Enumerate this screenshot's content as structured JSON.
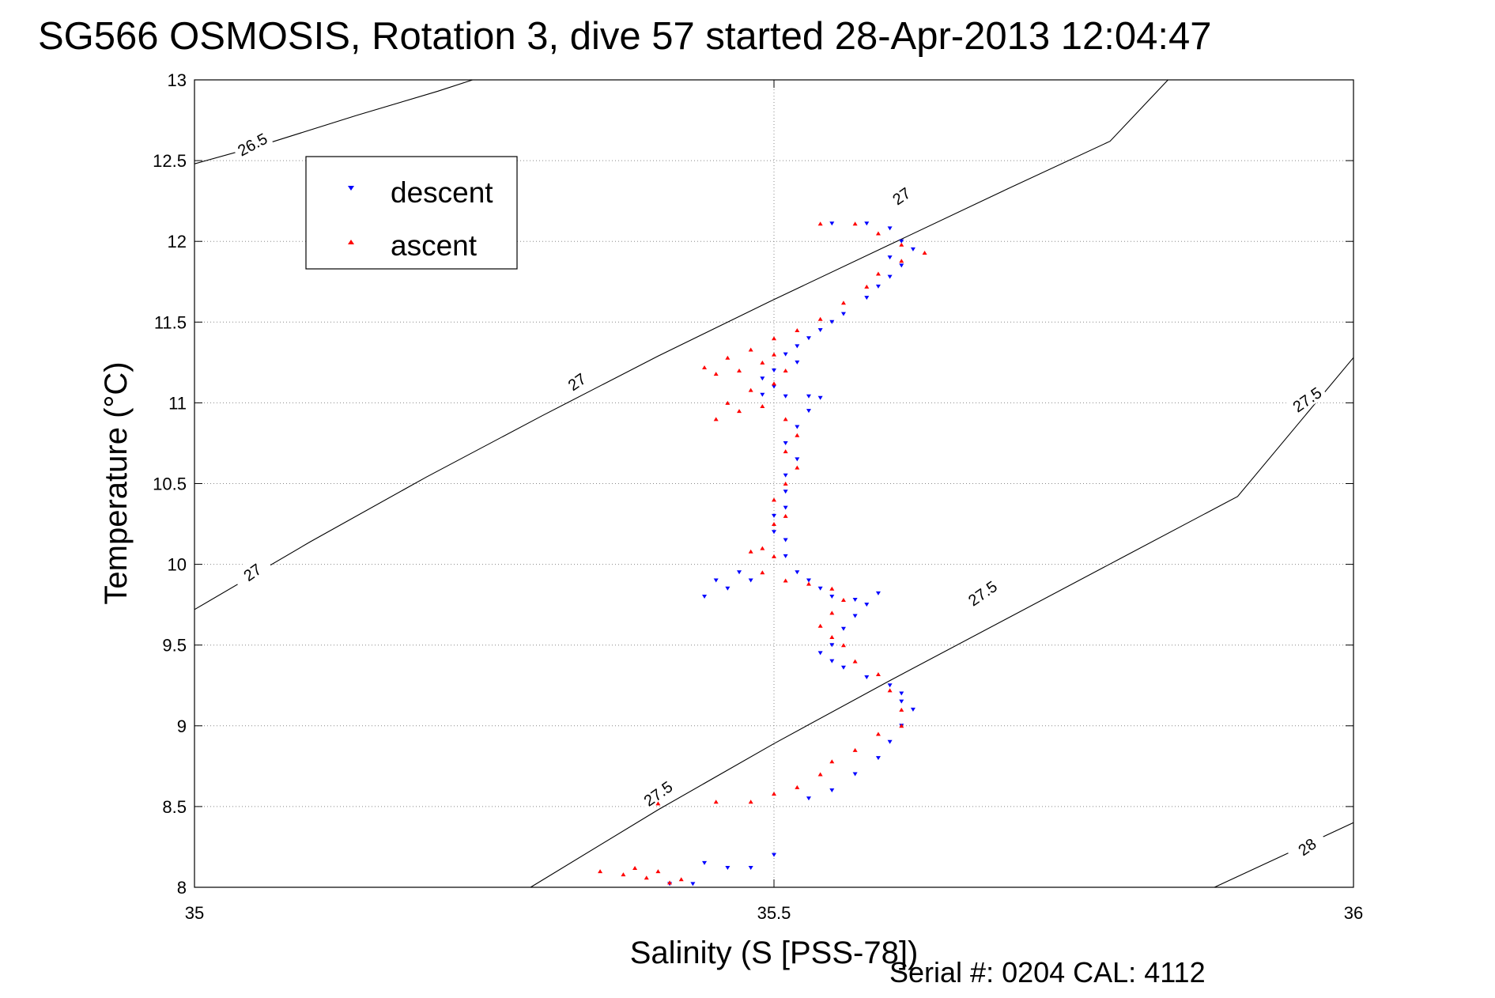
{
  "chart_data": {
    "type": "scatter",
    "title": "SG566 OSMOSIS, Rotation 3, dive 57 started 28-Apr-2013 12:04:47",
    "xlabel": "Salinity (S [PSS-78])",
    "ylabel": "Temperature (°C)",
    "footer": "Serial #: 0204  CAL: 4112",
    "xlim": [
      35,
      36
    ],
    "ylim": [
      8,
      13
    ],
    "xticks": [
      "35",
      "35.5",
      "36"
    ],
    "yticks": [
      "8",
      "8.5",
      "9",
      "9.5",
      "10",
      "10.5",
      "11",
      "11.5",
      "12",
      "12.5",
      "13"
    ],
    "xtick_values": [
      35,
      35.5,
      36
    ],
    "ytick_values": [
      8,
      8.5,
      9,
      9.5,
      10,
      10.5,
      11,
      11.5,
      12,
      12.5,
      13
    ],
    "grid": true,
    "legend_position": "top-left",
    "series": [
      {
        "name": "descent",
        "color": "#0000ff",
        "marker": "triangle-down",
        "points": [
          [
            35.55,
            12.11
          ],
          [
            35.58,
            12.11
          ],
          [
            35.6,
            12.08
          ],
          [
            35.61,
            12.0
          ],
          [
            35.62,
            11.95
          ],
          [
            35.6,
            11.9
          ],
          [
            35.61,
            11.85
          ],
          [
            35.6,
            11.78
          ],
          [
            35.59,
            11.72
          ],
          [
            35.58,
            11.65
          ],
          [
            35.56,
            11.55
          ],
          [
            35.55,
            11.5
          ],
          [
            35.54,
            11.45
          ],
          [
            35.53,
            11.4
          ],
          [
            35.52,
            11.35
          ],
          [
            35.51,
            11.3
          ],
          [
            35.52,
            11.25
          ],
          [
            35.5,
            11.2
          ],
          [
            35.49,
            11.15
          ],
          [
            35.5,
            11.1
          ],
          [
            35.49,
            11.05
          ],
          [
            35.51,
            11.04
          ],
          [
            35.53,
            11.04
          ],
          [
            35.54,
            11.03
          ],
          [
            35.53,
            10.95
          ],
          [
            35.52,
            10.85
          ],
          [
            35.51,
            10.75
          ],
          [
            35.52,
            10.65
          ],
          [
            35.51,
            10.55
          ],
          [
            35.51,
            10.45
          ],
          [
            35.51,
            10.35
          ],
          [
            35.5,
            10.3
          ],
          [
            35.5,
            10.2
          ],
          [
            35.51,
            10.15
          ],
          [
            35.51,
            10.05
          ],
          [
            35.52,
            9.95
          ],
          [
            35.53,
            9.9
          ],
          [
            35.54,
            9.85
          ],
          [
            35.55,
            9.8
          ],
          [
            35.57,
            9.78
          ],
          [
            35.59,
            9.82
          ],
          [
            35.58,
            9.75
          ],
          [
            35.57,
            9.68
          ],
          [
            35.56,
            9.6
          ],
          [
            35.55,
            9.5
          ],
          [
            35.54,
            9.45
          ],
          [
            35.55,
            9.4
          ],
          [
            35.56,
            9.36
          ],
          [
            35.58,
            9.3
          ],
          [
            35.6,
            9.25
          ],
          [
            35.61,
            9.2
          ],
          [
            35.61,
            9.15
          ],
          [
            35.62,
            9.1
          ],
          [
            35.61,
            9.0
          ],
          [
            35.6,
            8.9
          ],
          [
            35.59,
            8.8
          ],
          [
            35.57,
            8.7
          ],
          [
            35.55,
            8.6
          ],
          [
            35.53,
            8.55
          ],
          [
            35.48,
            9.9
          ],
          [
            35.46,
            9.85
          ],
          [
            35.44,
            9.8
          ],
          [
            35.45,
            9.9
          ],
          [
            35.47,
            9.95
          ],
          [
            35.5,
            8.2
          ],
          [
            35.48,
            8.12
          ],
          [
            35.46,
            8.12
          ],
          [
            35.44,
            8.15
          ],
          [
            35.43,
            8.02
          ],
          [
            35.41,
            8.02
          ]
        ]
      },
      {
        "name": "ascent",
        "color": "#ff0000",
        "marker": "triangle-up",
        "points": [
          [
            35.54,
            12.11
          ],
          [
            35.57,
            12.11
          ],
          [
            35.59,
            12.05
          ],
          [
            35.61,
            11.98
          ],
          [
            35.63,
            11.93
          ],
          [
            35.61,
            11.88
          ],
          [
            35.59,
            11.8
          ],
          [
            35.58,
            11.72
          ],
          [
            35.56,
            11.62
          ],
          [
            35.54,
            11.52
          ],
          [
            35.52,
            11.45
          ],
          [
            35.5,
            11.4
          ],
          [
            35.48,
            11.33
          ],
          [
            35.46,
            11.28
          ],
          [
            35.44,
            11.22
          ],
          [
            35.45,
            11.18
          ],
          [
            35.47,
            11.2
          ],
          [
            35.49,
            11.25
          ],
          [
            35.5,
            11.3
          ],
          [
            35.51,
            11.2
          ],
          [
            35.5,
            11.12
          ],
          [
            35.48,
            11.08
          ],
          [
            35.46,
            11.0
          ],
          [
            35.45,
            10.9
          ],
          [
            35.47,
            10.95
          ],
          [
            35.49,
            10.98
          ],
          [
            35.51,
            10.9
          ],
          [
            35.52,
            10.8
          ],
          [
            35.51,
            10.7
          ],
          [
            35.52,
            10.6
          ],
          [
            35.51,
            10.5
          ],
          [
            35.5,
            10.4
          ],
          [
            35.51,
            10.3
          ],
          [
            35.5,
            10.25
          ],
          [
            35.49,
            10.1
          ],
          [
            35.5,
            10.05
          ],
          [
            35.48,
            10.08
          ],
          [
            35.49,
            9.95
          ],
          [
            35.51,
            9.9
          ],
          [
            35.53,
            9.88
          ],
          [
            35.55,
            9.85
          ],
          [
            35.56,
            9.78
          ],
          [
            35.55,
            9.7
          ],
          [
            35.54,
            9.62
          ],
          [
            35.55,
            9.55
          ],
          [
            35.56,
            9.5
          ],
          [
            35.57,
            9.4
          ],
          [
            35.59,
            9.32
          ],
          [
            35.6,
            9.22
          ],
          [
            35.61,
            9.1
          ],
          [
            35.61,
            9.0
          ],
          [
            35.59,
            8.95
          ],
          [
            35.57,
            8.85
          ],
          [
            35.55,
            8.78
          ],
          [
            35.54,
            8.7
          ],
          [
            35.52,
            8.62
          ],
          [
            35.5,
            8.58
          ],
          [
            35.4,
            8.52
          ],
          [
            35.45,
            8.53
          ],
          [
            35.48,
            8.53
          ],
          [
            35.35,
            8.1
          ],
          [
            35.37,
            8.08
          ],
          [
            35.39,
            8.06
          ],
          [
            35.41,
            8.03
          ],
          [
            35.42,
            8.05
          ],
          [
            35.4,
            8.1
          ],
          [
            35.38,
            8.12
          ]
        ]
      }
    ],
    "contours": [
      {
        "label": "26.5",
        "points": [
          [
            35.0,
            12.48
          ],
          [
            35.06,
            12.6
          ],
          [
            35.14,
            12.78
          ],
          [
            35.21,
            12.93
          ],
          [
            35.24,
            13.0
          ]
        ]
      },
      {
        "label": "27",
        "points": [
          [
            35.0,
            9.72
          ],
          [
            35.1,
            10.14
          ],
          [
            35.2,
            10.54
          ],
          [
            35.3,
            10.92
          ],
          [
            35.4,
            11.29
          ],
          [
            35.5,
            11.64
          ],
          [
            35.6,
            11.98
          ],
          [
            35.7,
            12.32
          ],
          [
            35.79,
            12.62
          ],
          [
            35.84,
            13.0
          ]
        ]
      },
      {
        "label": "27.5",
        "points": [
          [
            35.29,
            8.0
          ],
          [
            35.4,
            8.48
          ],
          [
            35.5,
            8.89
          ],
          [
            35.6,
            9.28
          ],
          [
            35.7,
            9.66
          ],
          [
            35.8,
            10.04
          ],
          [
            35.9,
            10.42
          ],
          [
            36.0,
            11.28
          ]
        ]
      },
      {
        "label": "28",
        "points": [
          [
            35.88,
            8.0
          ],
          [
            35.94,
            8.2
          ],
          [
            36.0,
            8.4
          ]
        ]
      }
    ],
    "contour_labels": [
      {
        "text": "26.5",
        "x": 35.05,
        "y": 12.6,
        "angle": -28
      },
      {
        "text": "27",
        "x": 35.05,
        "y": 9.95,
        "angle": -35
      },
      {
        "text": "27",
        "x": 35.33,
        "y": 11.13,
        "angle": -35
      },
      {
        "text": "27",
        "x": 35.61,
        "y": 12.28,
        "angle": -35
      },
      {
        "text": "27.5",
        "x": 35.4,
        "y": 8.58,
        "angle": -35
      },
      {
        "text": "27.5",
        "x": 35.68,
        "y": 9.82,
        "angle": -35
      },
      {
        "text": "27.5",
        "x": 35.96,
        "y": 11.02,
        "angle": -35
      },
      {
        "text": "28",
        "x": 35.96,
        "y": 8.25,
        "angle": -35
      }
    ]
  }
}
